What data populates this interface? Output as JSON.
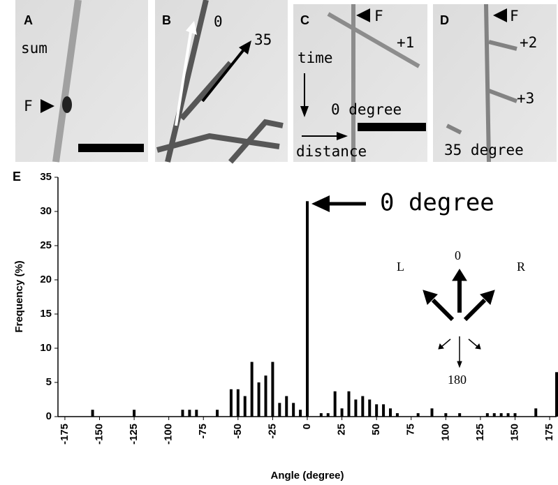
{
  "panels": [
    {
      "label": "A",
      "texts": [
        "sum",
        "F"
      ]
    },
    {
      "label": "B",
      "texts": [
        "0",
        "35"
      ]
    },
    {
      "label": "C",
      "texts": [
        "F",
        "+1",
        "time",
        "0 degree",
        "distance"
      ]
    },
    {
      "label": "D",
      "texts": [
        "F",
        "+2",
        "+3",
        "35 degree"
      ]
    }
  ],
  "chart_data": {
    "type": "bar",
    "panel_label": "E",
    "xlabel": "Angle (degree)",
    "ylabel": "Frequency (%)",
    "annotation": "0 degree",
    "inset_labels": [
      "L",
      "0",
      "R",
      "180"
    ],
    "x": [
      -155,
      -125,
      -90,
      -85,
      -80,
      -65,
      -55,
      -50,
      -45,
      -40,
      -35,
      -30,
      -25,
      -20,
      -15,
      -10,
      -5,
      0,
      10,
      15,
      20,
      25,
      30,
      35,
      40,
      45,
      50,
      55,
      60,
      65,
      80,
      90,
      100,
      110,
      130,
      135,
      140,
      145,
      150,
      165,
      180
    ],
    "values": [
      1,
      1,
      1,
      1,
      1,
      1,
      4,
      4,
      3,
      8,
      5,
      6,
      8,
      2,
      3,
      2,
      1,
      31.5,
      0.5,
      0.5,
      3.7,
      1.2,
      3.7,
      2.5,
      3,
      2.5,
      1.8,
      1.8,
      1.2,
      0.5,
      0.5,
      1.2,
      0.5,
      0.5,
      0.5,
      0.5,
      0.5,
      0.5,
      0.5,
      1.2,
      6.5
    ],
    "color": "#000000",
    "xlim": [
      -180,
      180
    ],
    "ylim": [
      0,
      35
    ],
    "xticks": [
      -175,
      -150,
      -125,
      -100,
      -75,
      -50,
      -25,
      0,
      25,
      50,
      75,
      100,
      125,
      150,
      175
    ],
    "yticks": [
      0,
      5,
      10,
      15,
      20,
      25,
      30,
      35
    ]
  }
}
